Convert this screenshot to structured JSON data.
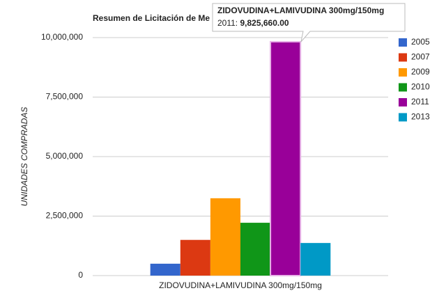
{
  "chart_data": {
    "type": "bar",
    "title": "Resumen de Licitación de Me",
    "y_label": "UNIDADES COMPRADAS",
    "categories": [
      "ZIDOVUDINA+LAMIVUDINA 300mg/150mg"
    ],
    "series": [
      {
        "name": "2005",
        "color": "#3366cc",
        "values": [
          500000
        ]
      },
      {
        "name": "2007",
        "color": "#dc3912",
        "values": [
          1500000
        ]
      },
      {
        "name": "2009",
        "color": "#ff9900",
        "values": [
          3250000
        ]
      },
      {
        "name": "2010",
        "color": "#109618",
        "values": [
          2220000
        ]
      },
      {
        "name": "2011",
        "color": "#990099",
        "values": [
          9825660
        ],
        "value_labels": [
          "9,825,660.00"
        ]
      },
      {
        "name": "2013",
        "color": "#0099c6",
        "values": [
          1370000
        ]
      }
    ],
    "ylim": [
      0,
      10000000
    ],
    "yticks": [
      0,
      {
        "value": 2500000,
        "label": "2,500,000"
      },
      {
        "value": 5000000,
        "label": "5,000,000"
      },
      {
        "value": 7500000,
        "label": "7,500,000"
      },
      {
        "value": 10000000,
        "label": "10,000,000"
      }
    ],
    "grid": true,
    "legend": "right",
    "tooltip": {
      "label": "2011:"
    }
  }
}
